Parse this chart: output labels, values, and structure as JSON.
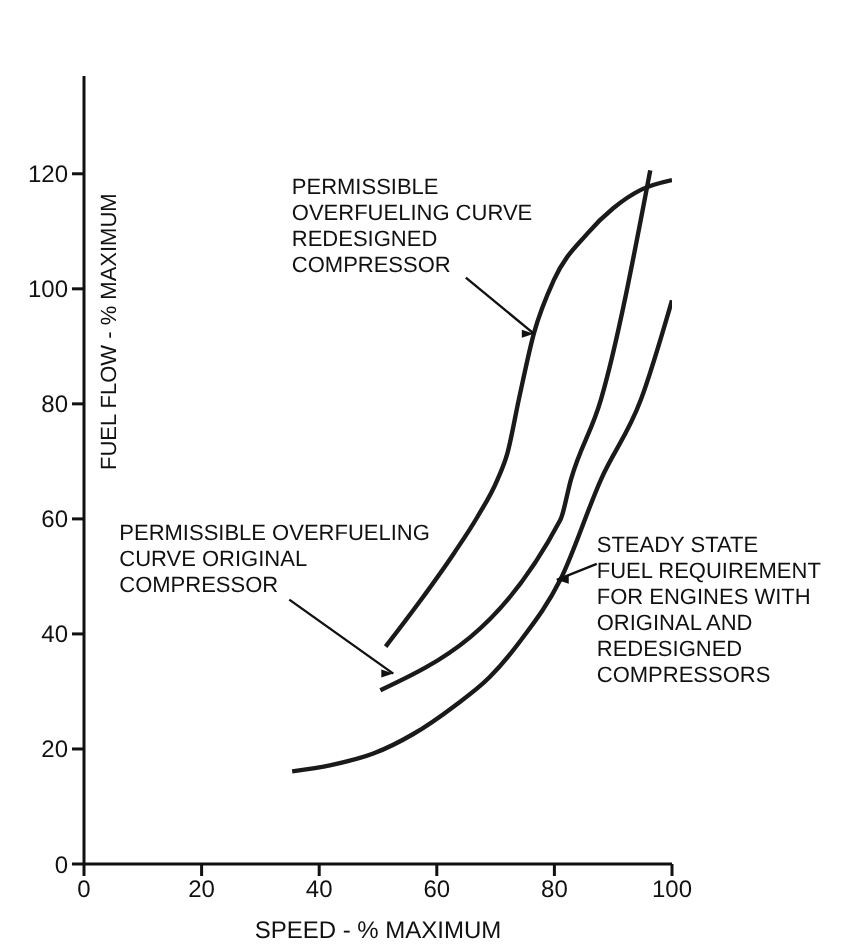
{
  "chart_data": {
    "type": "line",
    "xlabel": "SPEED - % MAXIMUM",
    "ylabel": "FUEL FLOW - % MAXIMUM",
    "xlim": [
      0,
      100
    ],
    "xticks": [
      0,
      20,
      40,
      60,
      80,
      100
    ],
    "ylim": [
      0,
      137
    ],
    "yticks": [
      0,
      20,
      40,
      60,
      80,
      100,
      120
    ],
    "grid": false,
    "legend": false,
    "marker": "none",
    "line_style": "solid",
    "series": [
      {
        "color": "#1a1a1a",
        "x": [
          51.3,
          57,
          62.9,
          67,
          70.3,
          72,
          74,
          76.5,
          79.9,
          85.6,
          90,
          94.7,
          100
        ],
        "values": [
          37.8,
          45.5,
          54,
          60.5,
          66.8,
          71.4,
          81,
          92.2,
          101.5,
          109.6,
          114,
          117.2,
          118.9
        ]
      },
      {
        "color": "#1a1a1a",
        "x": [
          50.4,
          81,
          82.8,
          87.9,
          96.3
        ],
        "values": [
          30.2,
          59.8,
          66.8,
          80.7,
          120.6
        ]
      },
      {
        "color": "#1a1a1a",
        "x": [
          35.4,
          42,
          49.2,
          56,
          62.9,
          69,
          74.3,
          81,
          87.9,
          94.7,
          100
        ],
        "values": [
          16.1,
          17.2,
          19.2,
          22.6,
          27.4,
          32.5,
          38.9,
          49.4,
          66.8,
          80.7,
          98
        ]
      }
    ],
    "annotations": [
      {
        "text": "PERMISSIBLE\nOVERFUELING CURVE\nREDESIGNED\nCOMPRESSOR",
        "x": 76.5,
        "y": 92.2
      },
      {
        "text": "PERMISSIBLE OVERFUELING\nCURVE ORIGINAL\nCOMPRESSOR",
        "x": 52.6,
        "y": 33.1
      },
      {
        "text": "STEADY STATE\nFUEL REQUIREMENT\nFOR ENGINES WITH\nORIGINAL AND\nREDESIGNED\nCOMPRESSORS",
        "x": 80.4,
        "y": 49.4
      }
    ]
  }
}
